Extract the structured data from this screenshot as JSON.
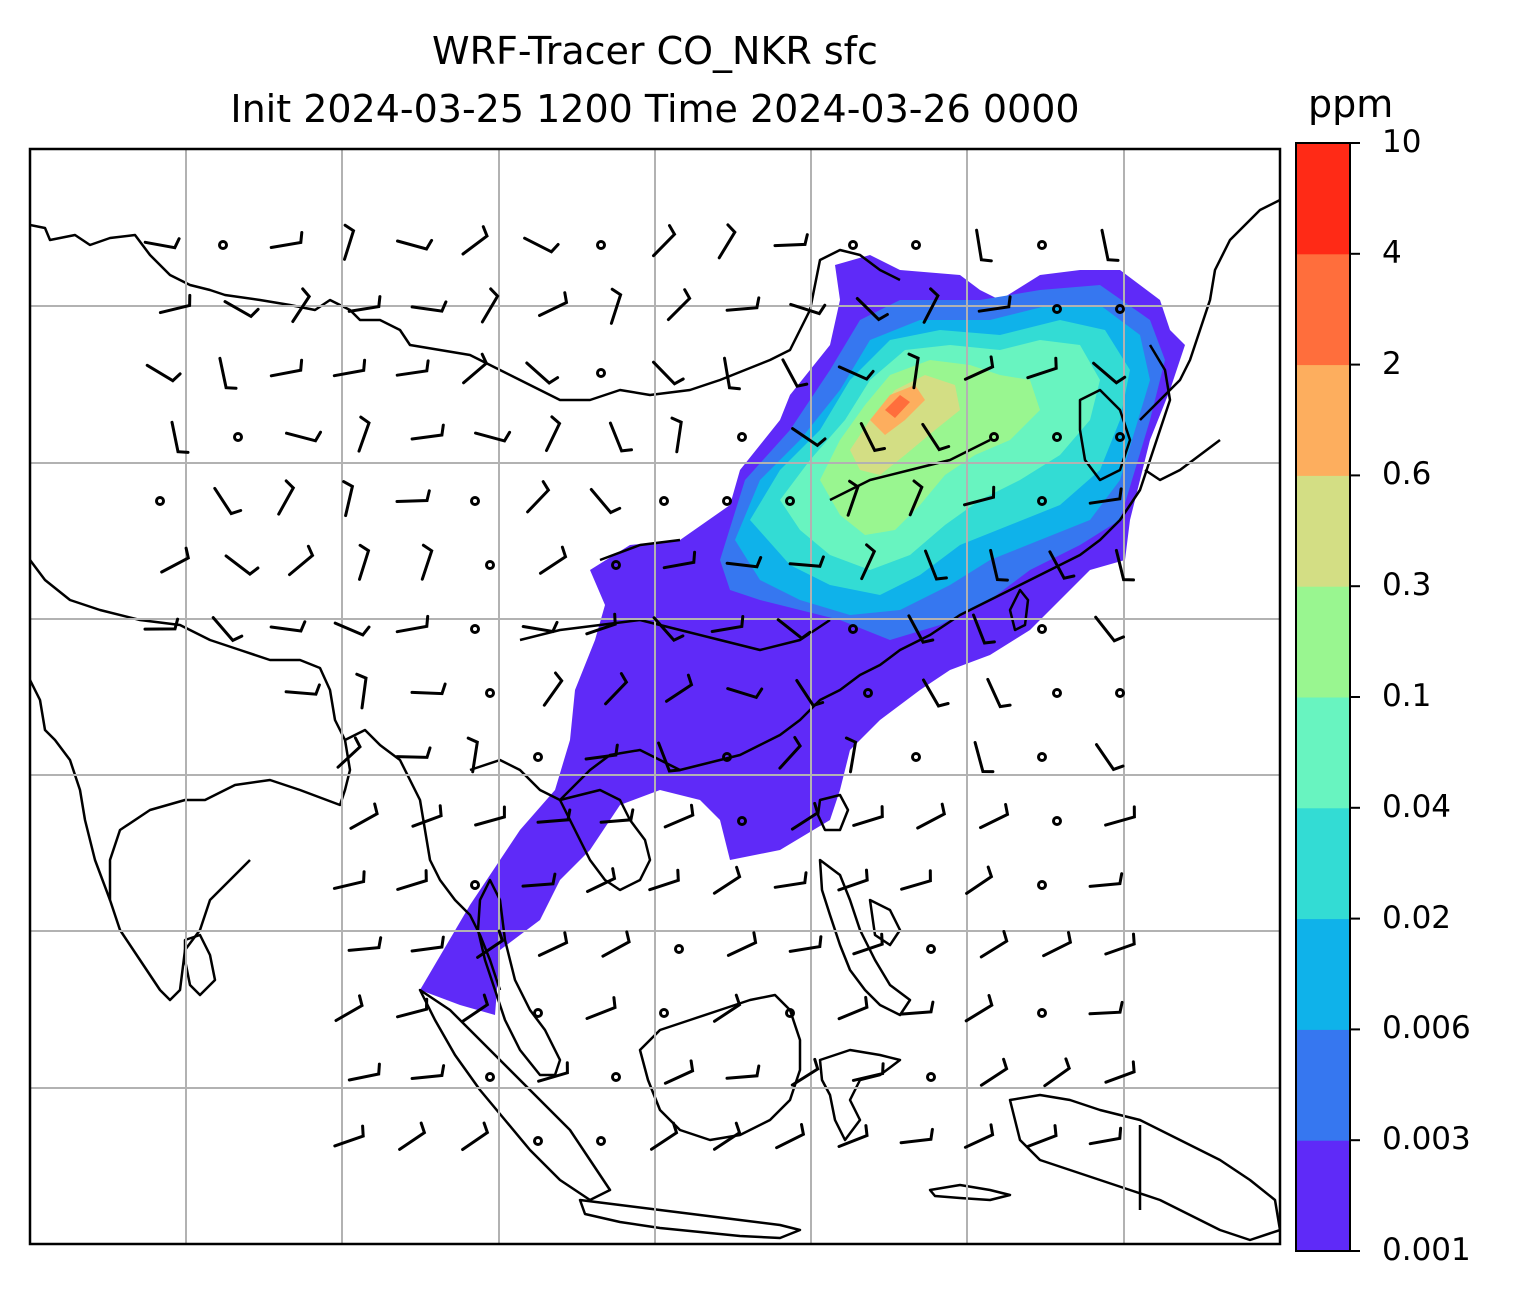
{
  "title_line1": "WRF-Tracer CO_NKR sfc",
  "title_line2": "Init 2024-03-25 1200 Time 2024-03-26 0000",
  "colorbar": {
    "unit": "ppm",
    "levels": [
      "0.001",
      "0.003",
      "0.006",
      "0.02",
      "0.04",
      "0.1",
      "0.3",
      "0.6",
      "2",
      "4",
      "10"
    ],
    "colors": [
      "#5f2af8",
      "#3677f0",
      "#0fb2ea",
      "#33dcd4",
      "#68f4c0",
      "#99f690",
      "#d3de84",
      "#fdae5e",
      "#ff6e3c",
      "#ff2a16"
    ]
  },
  "map": {
    "gridlines": true,
    "grid_color": "#b2b2b2",
    "coastline_color": "#000000",
    "wind_barbs": true
  }
}
